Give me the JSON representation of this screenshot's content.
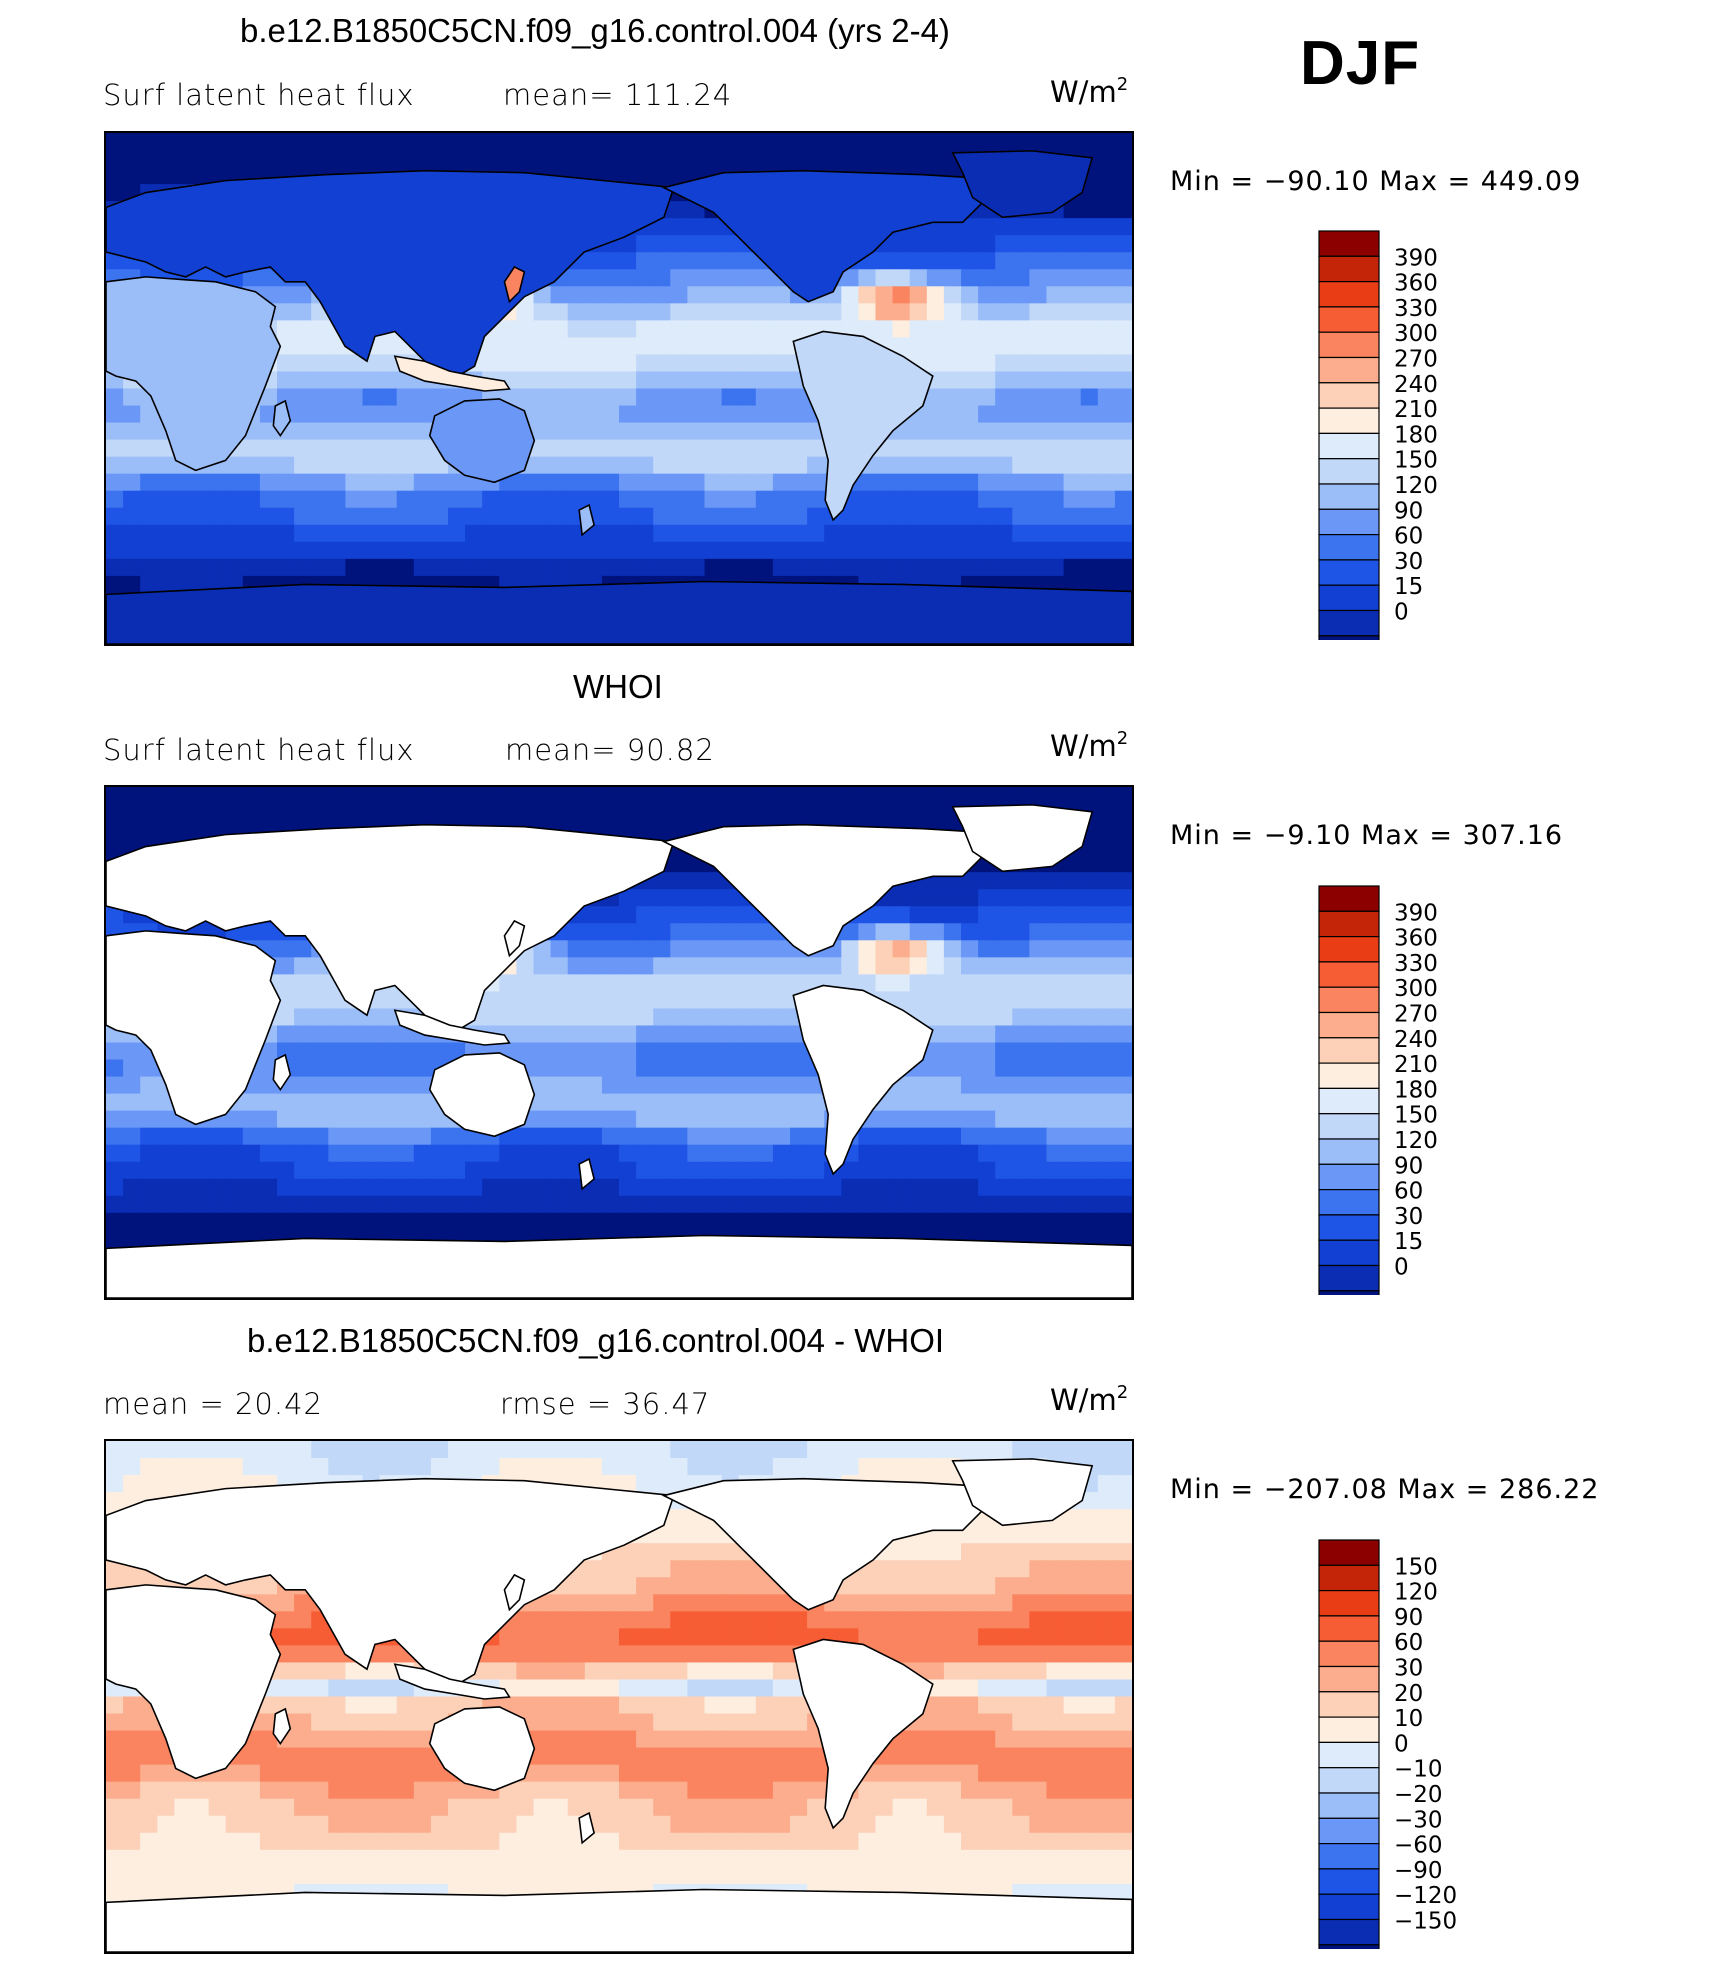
{
  "season": "DJF",
  "colors": {
    "heat_scale": [
      "#00137d",
      "#0a2db4",
      "#1240d2",
      "#1e55e6",
      "#3c73ef",
      "#6b98f6",
      "#9bbef8",
      "#c2d8f8",
      "#ddebfa",
      "#fdeee0",
      "#fcd1b8",
      "#fbad8e",
      "#f9845f",
      "#f75d35",
      "#e83d15",
      "#c42408",
      "#8c0000"
    ],
    "diff_scale": [
      "#00137d",
      "#0a2db4",
      "#1240d2",
      "#1e55e6",
      "#3c73ef",
      "#6b98f6",
      "#9bbef8",
      "#c2d8f8",
      "#ddebfa",
      "#fdeee0",
      "#fcd1b8",
      "#fbad8e",
      "#f9845f",
      "#f75d35",
      "#e83d15",
      "#c42408",
      "#8c0000"
    ]
  },
  "panels": [
    {
      "title": "b.e12.B1850C5CN.f09_g16.control.004 (yrs 2-4)",
      "left_label": "Surf latent heat flux",
      "mid_label": "mean=  111.24",
      "units": "W/m",
      "units_sup": "2",
      "minmax": "Min  =  −90.10  Max  =  449.09",
      "colorbar_labels": [
        "390",
        "360",
        "330",
        "300",
        "270",
        "240",
        "210",
        "180",
        "150",
        "120",
        "90",
        "60",
        "30",
        "15",
        "0"
      ]
    },
    {
      "title": "WHOI",
      "left_label": "Surf latent heat flux",
      "mid_label": "mean=   90.82",
      "units": "W/m",
      "units_sup": "2",
      "minmax": "Min  =   −9.10  Max  =  307.16",
      "colorbar_labels": [
        "390",
        "360",
        "330",
        "300",
        "270",
        "240",
        "210",
        "180",
        "150",
        "120",
        "90",
        "60",
        "30",
        "15",
        "0"
      ]
    },
    {
      "title": "b.e12.B1850C5CN.f09_g16.control.004 - WHOI",
      "left_label": "mean  =    20.42",
      "mid_label": "rmse  =    36.47",
      "units": "W/m",
      "units_sup": "2",
      "minmax": "Min  =  −207.08  Max  =  286.22",
      "colorbar_labels": [
        "150",
        "120",
        "90",
        "60",
        "30",
        "20",
        "10",
        "0",
        "−10",
        "−20",
        "−30",
        "−60",
        "−90",
        "−120",
        "−150"
      ]
    }
  ],
  "chart_data": [
    {
      "type": "heatmap",
      "title": "b.e12.B1850C5CN.f09_g16.control.004 (yrs 2-4)",
      "variable": "Surf latent heat flux",
      "units": "W/m2",
      "season": "DJF",
      "mean": 111.24,
      "min": -90.1,
      "max": 449.09,
      "contour_levels": [
        0,
        15,
        30,
        60,
        90,
        120,
        150,
        180,
        210,
        240,
        270,
        300,
        330,
        360,
        390
      ],
      "land_masked": false
    },
    {
      "type": "heatmap",
      "title": "WHOI",
      "variable": "Surf latent heat flux",
      "units": "W/m2",
      "season": "DJF",
      "mean": 90.82,
      "min": -9.1,
      "max": 307.16,
      "contour_levels": [
        0,
        15,
        30,
        60,
        90,
        120,
        150,
        180,
        210,
        240,
        270,
        300,
        330,
        360,
        390
      ],
      "land_masked": true
    },
    {
      "type": "heatmap",
      "title": "b.e12.B1850C5CN.f09_g16.control.004 - WHOI",
      "units": "W/m2",
      "season": "DJF",
      "mean": 20.42,
      "rmse": 36.47,
      "min": -207.08,
      "max": 286.22,
      "contour_levels": [
        -150,
        -120,
        -90,
        -60,
        -30,
        -20,
        -10,
        0,
        10,
        20,
        30,
        60,
        90,
        120,
        150
      ],
      "land_masked": true
    }
  ]
}
